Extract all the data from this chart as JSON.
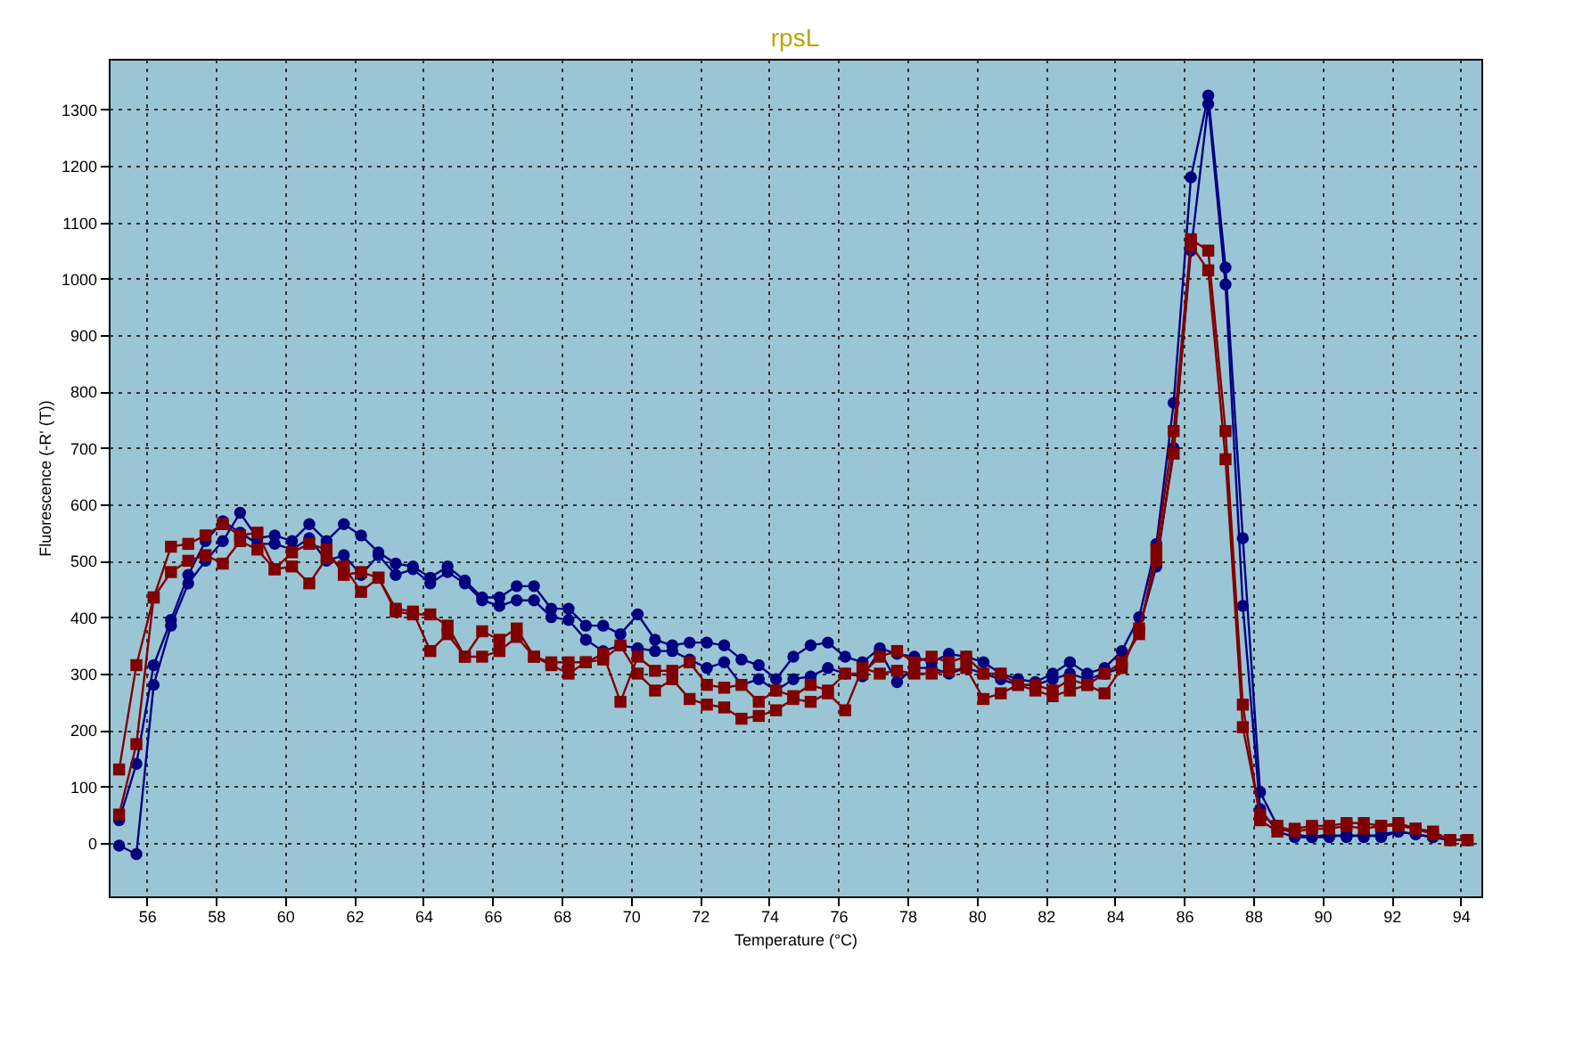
{
  "chart_data": {
    "type": "line",
    "title": "rpsL",
    "xlabel": "Temperature (°C)",
    "ylabel": "Fluorescence (-R' (T))",
    "xlim": [
      54.9,
      94.6
    ],
    "ylim": [
      -95,
      1390
    ],
    "xticks": [
      56,
      58,
      60,
      62,
      64,
      66,
      68,
      70,
      72,
      74,
      76,
      78,
      80,
      82,
      84,
      86,
      88,
      90,
      92,
      94
    ],
    "yticks": [
      0,
      100,
      200,
      300,
      400,
      500,
      600,
      700,
      800,
      900,
      1000,
      1100,
      1200,
      1300
    ],
    "grid": true,
    "line_style": "solid",
    "x": [
      55.2,
      55.7,
      56.2,
      56.7,
      57.2,
      57.7,
      58.2,
      58.7,
      59.2,
      59.7,
      60.2,
      60.7,
      61.2,
      61.7,
      62.2,
      62.7,
      63.2,
      63.7,
      64.2,
      64.7,
      65.2,
      65.7,
      66.2,
      66.7,
      67.2,
      67.7,
      68.2,
      68.7,
      69.2,
      69.7,
      70.2,
      70.7,
      71.2,
      71.7,
      72.2,
      72.7,
      73.2,
      73.7,
      74.2,
      74.7,
      75.2,
      75.7,
      76.2,
      76.7,
      77.2,
      77.7,
      78.2,
      78.7,
      79.2,
      79.7,
      80.2,
      80.7,
      81.2,
      81.7,
      82.2,
      82.7,
      83.2,
      83.7,
      84.2,
      84.7,
      85.2,
      85.7,
      86.2,
      86.7,
      87.2,
      87.7,
      88.2,
      88.7,
      89.2,
      89.7,
      90.2,
      90.7,
      91.2,
      91.7,
      92.2,
      92.7,
      93.2,
      93.7,
      94.2
    ],
    "series": [
      {
        "color": "#000080",
        "marker": "circle",
        "values": [
          -5,
          -20,
          280,
          385,
          460,
          500,
          535,
          585,
          540,
          545,
          535,
          565,
          535,
          565,
          545,
          515,
          495,
          490,
          470,
          490,
          465,
          435,
          435,
          455,
          455,
          415,
          415,
          385,
          385,
          370,
          405,
          360,
          350,
          355,
          355,
          350,
          325,
          315,
          290,
          330,
          350,
          355,
          330,
          320,
          345,
          335,
          330,
          320,
          335,
          330,
          320,
          300,
          290,
          285,
          300,
          320,
          300,
          310,
          340,
          400,
          530,
          780,
          1180,
          1325,
          1020,
          540,
          90,
          30,
          15,
          10,
          10,
          15,
          10,
          15,
          20,
          15,
          10,
          5,
          5
        ]
      },
      {
        "color": "#000080",
        "marker": "circle",
        "values": [
          40,
          140,
          315,
          395,
          475,
          535,
          570,
          550,
          530,
          530,
          520,
          540,
          500,
          510,
          475,
          510,
          475,
          485,
          460,
          480,
          460,
          430,
          420,
          430,
          430,
          400,
          395,
          360,
          340,
          350,
          345,
          340,
          340,
          325,
          310,
          320,
          280,
          290,
          270,
          290,
          295,
          310,
          300,
          295,
          340,
          285,
          310,
          310,
          300,
          310,
          300,
          290,
          280,
          280,
          290,
          300,
          290,
          300,
          310,
          380,
          490,
          700,
          1050,
          1310,
          990,
          420,
          60,
          20,
          10,
          10,
          15,
          10,
          15,
          10,
          20,
          15,
          10,
          5,
          5
        ]
      },
      {
        "color": "#800000",
        "marker": "square",
        "values": [
          130,
          315,
          435,
          525,
          530,
          545,
          565,
          545,
          550,
          485,
          515,
          530,
          520,
          475,
          480,
          470,
          410,
          405,
          405,
          385,
          330,
          375,
          360,
          380,
          330,
          320,
          320,
          320,
          335,
          250,
          330,
          305,
          305,
          320,
          280,
          275,
          280,
          250,
          270,
          260,
          280,
          270,
          300,
          300,
          330,
          340,
          320,
          330,
          320,
          330,
          300,
          300,
          280,
          280,
          270,
          290,
          280,
          300,
          320,
          370,
          520,
          730,
          1070,
          1050,
          730,
          245,
          40,
          20,
          25,
          30,
          30,
          35,
          35,
          30,
          35,
          25,
          20,
          5,
          5
        ]
      },
      {
        "color": "#800000",
        "marker": "square",
        "values": [
          50,
          175,
          435,
          480,
          500,
          510,
          495,
          535,
          520,
          485,
          490,
          460,
          505,
          490,
          445,
          470,
          415,
          410,
          340,
          370,
          330,
          330,
          340,
          365,
          330,
          315,
          300,
          320,
          325,
          350,
          300,
          270,
          290,
          255,
          245,
          240,
          220,
          225,
          235,
          255,
          250,
          265,
          235,
          310,
          300,
          305,
          300,
          300,
          305,
          310,
          255,
          265,
          280,
          270,
          260,
          270,
          280,
          265,
          310,
          380,
          500,
          690,
          1060,
          1015,
          680,
          205,
          50,
          30,
          20,
          25,
          25,
          30,
          25,
          30,
          30,
          25,
          15,
          5,
          5
        ]
      }
    ]
  }
}
